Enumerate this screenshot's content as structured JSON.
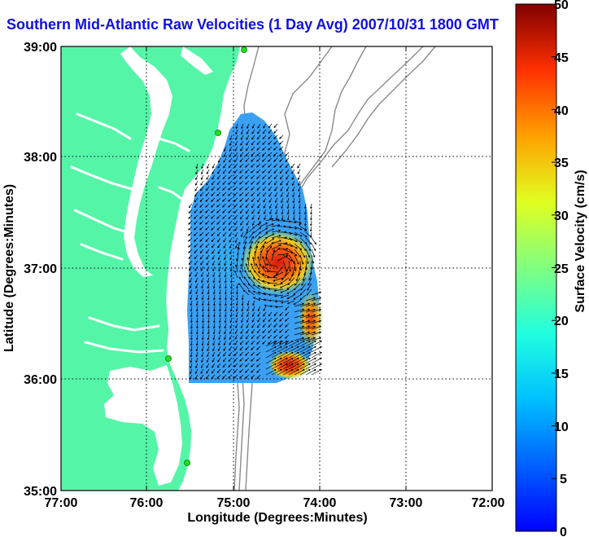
{
  "title": "Southern Mid-Atlantic Raw Velocities (1 Day Avg) 2007/10/31 1800 GMT",
  "map": {
    "xlabel": "Longitude (Degrees:Minutes)",
    "ylabel": "Latitude (Degrees:Minutes)",
    "x_ticks": [
      "77:00",
      "76:00",
      "75:00",
      "74:00",
      "73:00",
      "72:00"
    ],
    "y_ticks": [
      "39:00",
      "38:00",
      "37:00",
      "36:00",
      "35:00"
    ],
    "colors": {
      "land": "#55f5a8",
      "ocean": "#ffffff",
      "bathymetry": "#8a8a8a",
      "site": "#22dd22"
    }
  },
  "colorbar": {
    "label": "Surface Velocity (cm/s)",
    "min": 0,
    "max": 50,
    "ticks": [
      "50",
      "45",
      "40",
      "35",
      "30",
      "25",
      "20",
      "15",
      "10",
      "5",
      "0"
    ],
    "colormap": "jet"
  }
}
